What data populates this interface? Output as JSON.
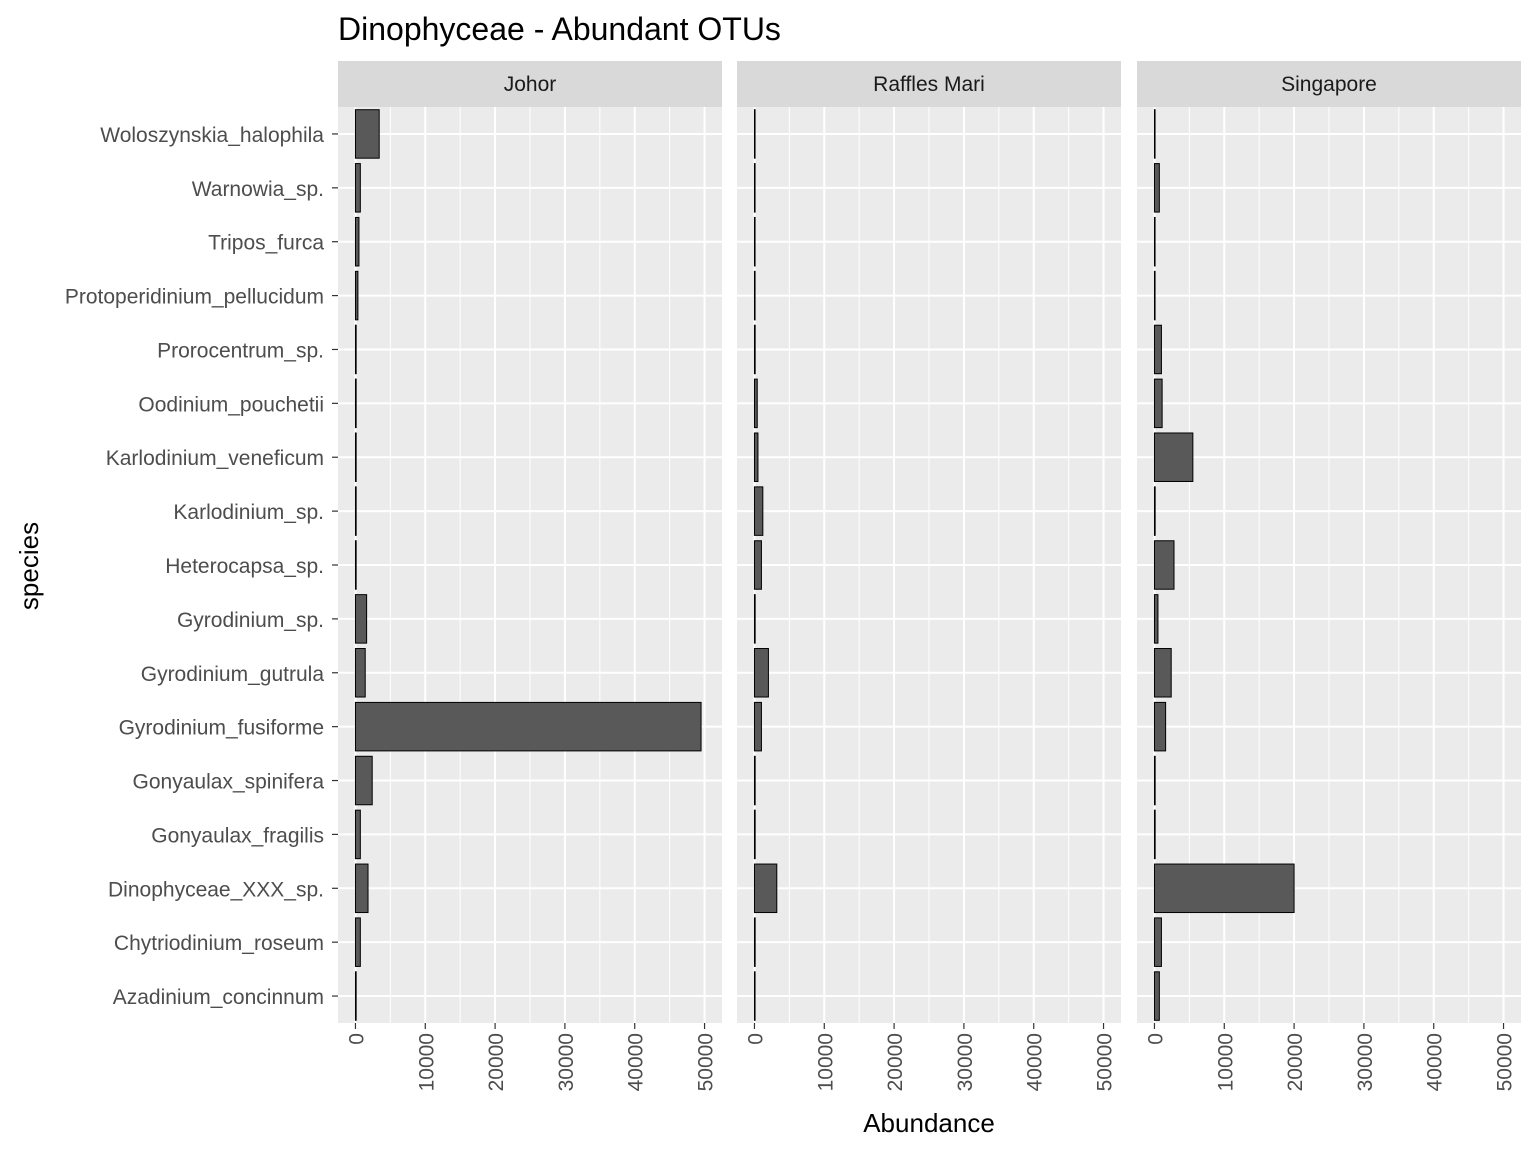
{
  "chart_data": {
    "type": "bar",
    "orientation": "horizontal",
    "title": "Dinophyceae - Abundant OTUs",
    "xlabel": "Abundance",
    "ylabel": "species",
    "xlim": [
      0,
      50000
    ],
    "xticks": [
      "0",
      "10000",
      "20000",
      "30000",
      "40000",
      "50000"
    ],
    "grid": true,
    "legend": "none",
    "colors": {
      "panel_bg": "#ebebeb",
      "strip_bg": "#d9d9d9",
      "grid": "#ffffff",
      "bar_fill": "#595959",
      "bar_stroke": "#000000",
      "tick": "#333333"
    },
    "categories": [
      "Woloszynskia_halophila",
      "Warnowia_sp.",
      "Tripos_furca",
      "Protoperidinium_pellucidum",
      "Prorocentrum_sp.",
      "Oodinium_pouchetii",
      "Karlodinium_veneficum",
      "Karlodinium_sp.",
      "Heterocapsa_sp.",
      "Gyrodinium_sp.",
      "Gyrodinium_gutrula",
      "Gyrodinium_fusiforme",
      "Gonyaulax_spinifera",
      "Gonyaulax_fragilis",
      "Dinophyceae_XXX_sp.",
      "Chytriodinium_roseum",
      "Azadinium_concinnum"
    ],
    "facets": [
      {
        "name": "Johor",
        "values": [
          3400,
          700,
          500,
          350,
          100,
          100,
          100,
          100,
          100,
          1600,
          1400,
          49500,
          2400,
          700,
          1800,
          700,
          100
        ]
      },
      {
        "name": "Raffles Mari",
        "values": [
          50,
          50,
          50,
          50,
          100,
          400,
          500,
          1200,
          1000,
          100,
          2000,
          1000,
          100,
          100,
          3200,
          100,
          50
        ]
      },
      {
        "name": "Singapore",
        "values": [
          50,
          700,
          50,
          50,
          1000,
          1100,
          5500,
          100,
          2800,
          500,
          2400,
          1600,
          100,
          100,
          20000,
          1000,
          700
        ]
      }
    ]
  }
}
